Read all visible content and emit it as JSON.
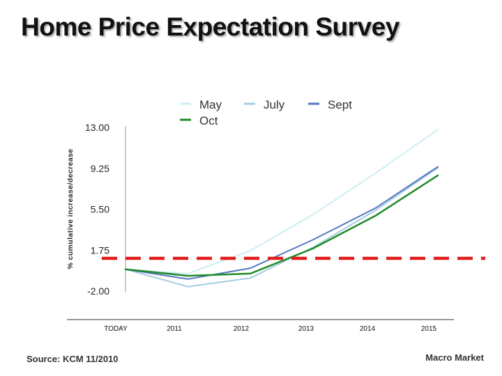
{
  "title": "Home Price Expectation Survey",
  "source": "Source: KCM 11/2010",
  "footer_right": "Macro Market",
  "chart_data": {
    "type": "line",
    "title": "Home Price Expectation Survey",
    "ylabel": "% cumulative increase/decrease",
    "xlabel": "",
    "x": [
      "TODAY",
      "2011",
      "2012",
      "2013",
      "2014",
      "2015"
    ],
    "yticks": [
      "13.00",
      "9.25",
      "5.50",
      "1.75",
      "-2.00"
    ],
    "ytick_values": [
      13.0,
      9.25,
      5.5,
      1.75,
      -2.0
    ],
    "ylim": [
      -2.0,
      13.0
    ],
    "legend_position": "top",
    "series": [
      {
        "name": "May",
        "color": "#cdeef4",
        "values": [
          0,
          -0.4,
          1.7,
          5.0,
          8.8,
          12.8
        ]
      },
      {
        "name": "July",
        "color": "#a6cbe3",
        "values": [
          0,
          -1.6,
          -0.8,
          2.0,
          5.4,
          9.3
        ]
      },
      {
        "name": "Sept",
        "color": "#5577c2",
        "values": [
          0,
          -0.9,
          0.1,
          2.7,
          5.6,
          9.4
        ]
      },
      {
        "name": "Oct",
        "color": "#1f8a26",
        "values": [
          0,
          -0.6,
          -0.4,
          1.9,
          4.9,
          8.6
        ]
      }
    ],
    "reference_line": {
      "value": 1.0,
      "color": "#e31c1c",
      "style": "dashed"
    }
  }
}
